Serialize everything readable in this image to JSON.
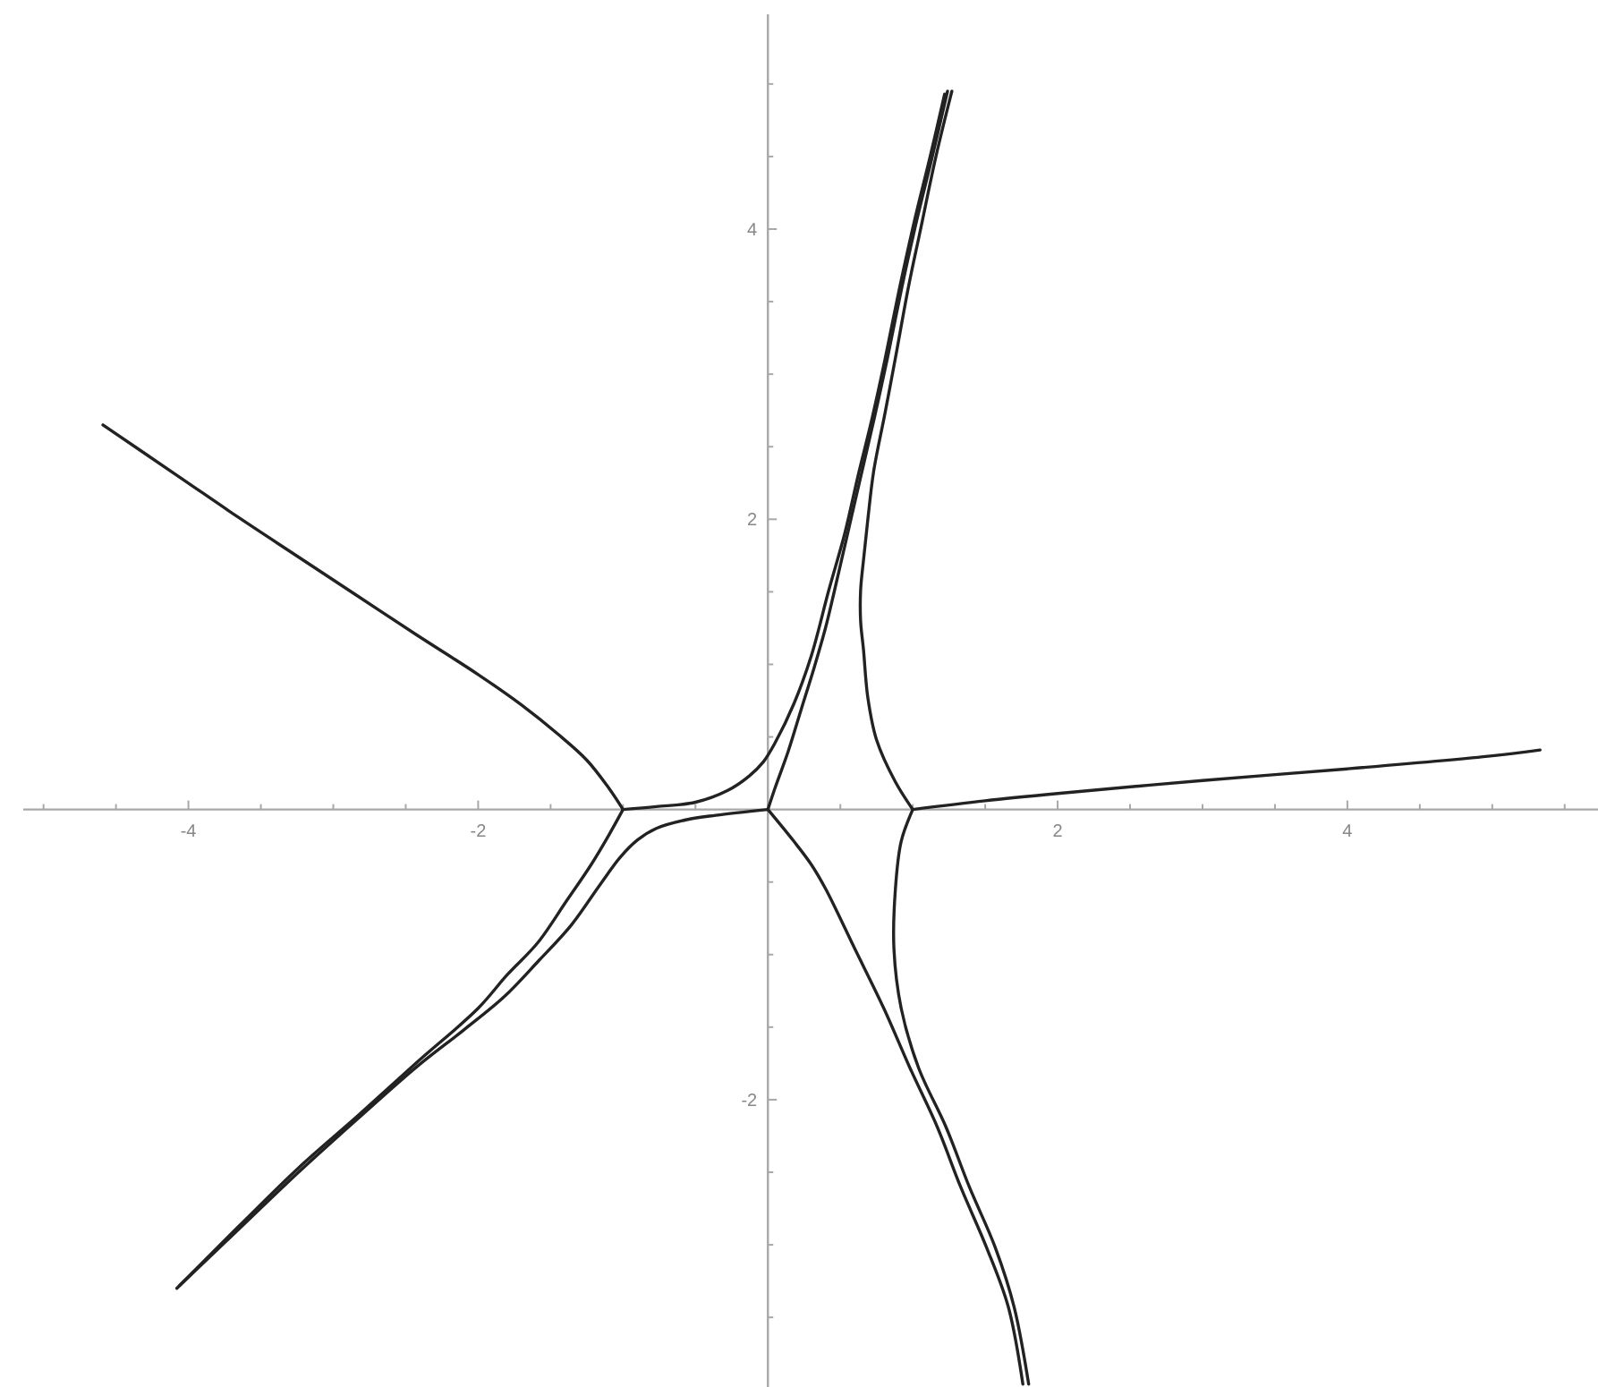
{
  "chart_data": {
    "type": "line",
    "xlim": [
      -5.14,
      5.73
    ],
    "ylim": [
      -3.98,
      5.48
    ],
    "xticks": [
      {
        "value": -5,
        "label": null
      },
      {
        "value": -4.5,
        "label": null
      },
      -4,
      {
        "value": -3.5,
        "label": null
      },
      {
        "value": -3,
        "label": null
      },
      {
        "value": -2.5,
        "label": null
      },
      -2,
      {
        "value": -1.5,
        "label": null
      },
      {
        "value": -1,
        "label": null
      },
      {
        "value": -0.5,
        "label": null
      },
      {
        "value": 0.5,
        "label": null
      },
      {
        "value": 1,
        "label": null
      },
      {
        "value": 1.5,
        "label": null
      },
      2,
      {
        "value": 2.5,
        "label": null
      },
      {
        "value": 3,
        "label": null
      },
      {
        "value": 3.5,
        "label": null
      },
      4,
      {
        "value": 4.5,
        "label": null
      },
      {
        "value": 5,
        "label": null
      },
      {
        "value": 5.5,
        "label": null
      }
    ],
    "yticks": [
      {
        "value": -3.5,
        "label": null
      },
      {
        "value": -3,
        "label": null
      },
      {
        "value": -2.5,
        "label": null
      },
      -2,
      {
        "value": -1.5,
        "label": null
      },
      {
        "value": -1,
        "label": null
      },
      {
        "value": -0.5,
        "label": null
      },
      {
        "value": 0.5,
        "label": null
      },
      {
        "value": 1,
        "label": null
      },
      {
        "value": 1.5,
        "label": null
      },
      2,
      {
        "value": 2.5,
        "label": null
      },
      {
        "value": 3,
        "label": null
      },
      {
        "value": 3.5,
        "label": null
      },
      4,
      {
        "value": 4.5,
        "label": null
      },
      {
        "value": 5,
        "label": null
      }
    ],
    "series": [
      {
        "color": "#222222",
        "x": [
          -1.0,
          -1.1,
          -1.25,
          -1.45,
          -1.7,
          -2.0,
          -2.42,
          -2.83,
          -3.24,
          -3.65,
          -4.06,
          -4.59
        ],
        "values": [
          0,
          0.15,
          0.34,
          0.52,
          0.72,
          0.93,
          1.2,
          1.47,
          1.74,
          2.01,
          2.29,
          2.65
        ]
      },
      {
        "color": "#222222",
        "x": [
          -1.0,
          -1.1,
          -1.22,
          -1.39,
          -1.59,
          -1.8,
          -2.0,
          -2.42,
          -2.83,
          -3.24,
          -3.65,
          -4.08
        ],
        "values": [
          0,
          -0.18,
          -0.38,
          -0.63,
          -0.92,
          -1.14,
          -1.37,
          -1.74,
          -2.11,
          -2.47,
          -2.87,
          -3.3
        ]
      },
      {
        "color": "#222222",
        "x": [
          0,
          -0.36,
          -0.56,
          -0.77,
          -0.9,
          -1.02,
          -1.16,
          -1.36,
          -1.58,
          -1.82,
          -2.1,
          -2.42,
          -2.83,
          -3.24,
          -3.65,
          -4.06
        ],
        "values": [
          0,
          -0.04,
          -0.07,
          -0.13,
          -0.21,
          -0.33,
          -0.52,
          -0.8,
          -1.04,
          -1.29,
          -1.52,
          -1.77,
          -2.13,
          -2.5,
          -2.89,
          -3.28
        ]
      },
      {
        "color": "#222222",
        "x": [
          -1.0,
          -0.77,
          -0.5,
          -0.28,
          -0.13,
          -0.03,
          0.05,
          0.18,
          0.3,
          0.42,
          0.53,
          0.62,
          0.72,
          0.81,
          0.91,
          1.01,
          1.12,
          1.22
        ],
        "values": [
          0,
          0.02,
          0.05,
          0.13,
          0.23,
          0.33,
          0.46,
          0.73,
          1.06,
          1.51,
          1.9,
          2.29,
          2.7,
          3.11,
          3.6,
          4.05,
          4.5,
          4.93
        ]
      },
      {
        "color": "#222222",
        "x": [
          0,
          0.05,
          0.14,
          0.23,
          0.32,
          0.4,
          0.46,
          0.55,
          0.64,
          0.735,
          0.825,
          0.925,
          1.025,
          1.135,
          1.24
        ],
        "values": [
          0,
          0.15,
          0.4,
          0.69,
          0.98,
          1.26,
          1.51,
          1.9,
          2.29,
          2.7,
          3.11,
          3.6,
          4.05,
          4.5,
          4.95
        ]
      },
      {
        "color": "#222222",
        "x": [
          1.0,
          0.88,
          0.75,
          0.69,
          0.66,
          0.64,
          0.64,
          0.66,
          0.69,
          0.73,
          0.81,
          0.88,
          0.97,
          1.05,
          1.16,
          1.27
        ],
        "values": [
          0,
          0.19,
          0.48,
          0.77,
          1.1,
          1.3,
          1.51,
          1.72,
          2.0,
          2.33,
          2.74,
          3.11,
          3.6,
          3.98,
          4.5,
          4.95
        ]
      },
      {
        "color": "#222222",
        "x": [
          1.0,
          0.92,
          0.88,
          0.87,
          0.92,
          1.04,
          1.23,
          1.39,
          1.57,
          1.7,
          1.8
        ],
        "values": [
          0,
          -0.22,
          -0.55,
          -0.96,
          -1.37,
          -1.78,
          -2.19,
          -2.6,
          -3.02,
          -3.43,
          -3.96
        ]
      },
      {
        "color": "#222222",
        "x": [
          0,
          0.18,
          0.3,
          0.4,
          0.6,
          0.8,
          0.98,
          1.17,
          1.33,
          1.51,
          1.66,
          1.76
        ],
        "values": [
          0,
          -0.22,
          -0.38,
          -0.55,
          -0.96,
          -1.37,
          -1.78,
          -2.19,
          -2.6,
          -3.02,
          -3.43,
          -3.96
        ]
      },
      {
        "color": "#222222",
        "x": [
          1.0,
          1.5,
          2.0,
          3.0,
          4.0,
          5.0,
          5.33
        ],
        "values": [
          0,
          0.06,
          0.11,
          0.2,
          0.28,
          0.37,
          0.41
        ]
      }
    ]
  }
}
